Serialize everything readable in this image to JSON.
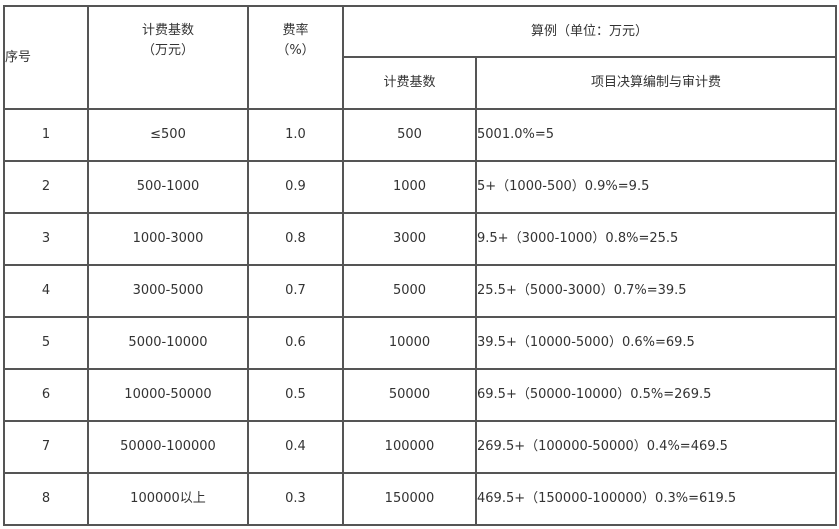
{
  "header": {
    "index": "序号",
    "base_line1": "计费基数",
    "base_line2": "（万元）",
    "rate_line1": "费率",
    "rate_line2": "（%）",
    "example": "算例（单位：万元）",
    "example_base": "计费基数",
    "example_fee": "项目决算编制与审计费"
  },
  "rows": [
    {
      "index": "1",
      "range": "≤500",
      "rate": "1.0",
      "base": "500",
      "calc": "5001.0%=5"
    },
    {
      "index": "2",
      "range": "500-1000",
      "rate": "0.9",
      "base": "1000",
      "calc": "5+（1000-500）0.9%=9.5"
    },
    {
      "index": "3",
      "range": "1000-3000",
      "rate": "0.8",
      "base": "3000",
      "calc": "9.5+（3000-1000）0.8%=25.5"
    },
    {
      "index": "4",
      "range": "3000-5000",
      "rate": "0.7",
      "base": "5000",
      "calc": "25.5+（5000-3000）0.7%=39.5"
    },
    {
      "index": "5",
      "range": "5000-10000",
      "rate": "0.6",
      "base": "10000",
      "calc": "39.5+（10000-5000）0.6%=69.5"
    },
    {
      "index": "6",
      "range": "10000-50000",
      "rate": "0.5",
      "base": "50000",
      "calc": "69.5+（50000-10000）0.5%=269.5"
    },
    {
      "index": "7",
      "range": "50000-100000",
      "rate": "0.4",
      "base": "100000",
      "calc": "269.5+（100000-50000）0.4%=469.5"
    },
    {
      "index": "8",
      "range": "100000以上",
      "rate": "0.3",
      "base": "150000",
      "calc": "469.5+（150000-100000）0.3%=619.5"
    }
  ]
}
